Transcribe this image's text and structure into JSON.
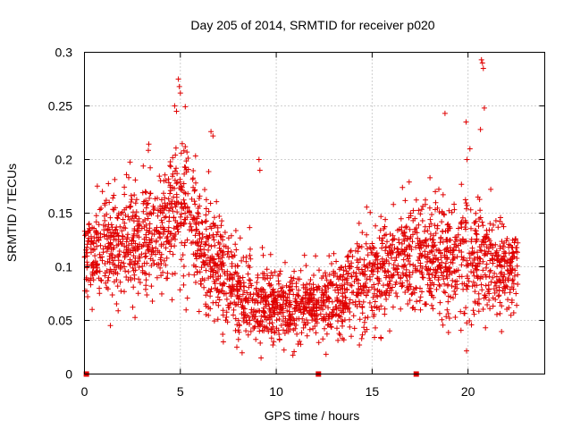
{
  "chart_data": {
    "type": "scatter",
    "title": "Day 205 of 2014, SRMTID for receiver p020",
    "xlabel": "GPS time / hours",
    "ylabel": "SRMTID / TECUs",
    "xlim": [
      0,
      24
    ],
    "ylim": [
      0,
      0.3
    ],
    "x_ticks": [
      0,
      5,
      10,
      15,
      20
    ],
    "x_tick_labels": [
      "0",
      "5",
      "10",
      "15",
      "20"
    ],
    "y_ticks": [
      0,
      0.05,
      0.1,
      0.15,
      0.2,
      0.25,
      0.3
    ],
    "y_tick_labels": [
      "0",
      "0.05",
      "0.1",
      "0.15",
      "0.2",
      "0.25",
      "0.3"
    ],
    "grid": true,
    "marker": "+",
    "color": "#e00000",
    "baseline_markers": {
      "description": "square markers at zero",
      "x": [
        0.1,
        12.2,
        17.3
      ],
      "y": [
        0,
        0,
        0
      ]
    },
    "trend": {
      "description": "approximate center line of the point cloud, with spread",
      "x": [
        0,
        1,
        2,
        3,
        4,
        4.8,
        5.5,
        6.5,
        7.5,
        8.5,
        9.5,
        10.5,
        11.5,
        12.5,
        13.5,
        14.5,
        15.5,
        16.5,
        17.5,
        18.5,
        19.5,
        20.5,
        21.5,
        22.6
      ],
      "y": [
        0.11,
        0.12,
        0.12,
        0.13,
        0.13,
        0.16,
        0.14,
        0.11,
        0.09,
        0.07,
        0.065,
        0.06,
        0.065,
        0.07,
        0.075,
        0.085,
        0.1,
        0.11,
        0.11,
        0.11,
        0.11,
        0.11,
        0.1,
        0.1
      ],
      "spread": [
        0.03,
        0.03,
        0.035,
        0.035,
        0.04,
        0.05,
        0.04,
        0.035,
        0.03,
        0.025,
        0.025,
        0.02,
        0.02,
        0.025,
        0.025,
        0.03,
        0.03,
        0.035,
        0.035,
        0.035,
        0.035,
        0.035,
        0.03,
        0.025
      ]
    },
    "outliers": {
      "x": [
        4.9,
        4.95,
        5.0,
        4.7,
        4.8,
        6.6,
        6.7,
        9.1,
        9.15,
        18.8,
        19.9,
        19.95,
        20.1,
        20.7,
        20.75,
        20.8,
        20.85,
        20.65
      ],
      "y": [
        0.275,
        0.268,
        0.262,
        0.25,
        0.245,
        0.226,
        0.222,
        0.2,
        0.19,
        0.243,
        0.235,
        0.2,
        0.21,
        0.293,
        0.29,
        0.285,
        0.248,
        0.228
      ]
    },
    "n_points": 2600,
    "random_seed": 205
  }
}
